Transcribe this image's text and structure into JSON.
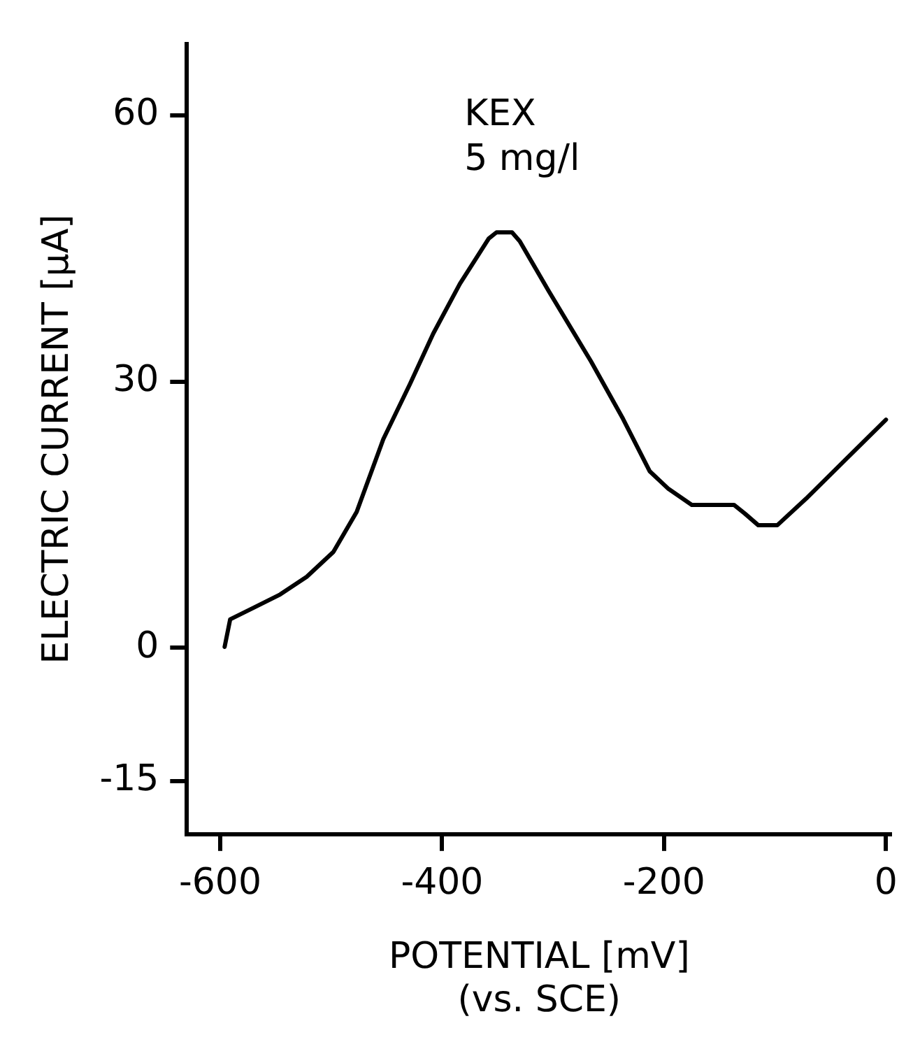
{
  "chart_data": {
    "type": "line",
    "xlabel": "POTENTIAL [mV]\n(vs. SCE)",
    "ylabel": "ELECTRIC CURRENT [μA]",
    "annotations": [
      "KEX\n5 mg/l"
    ],
    "x": [
      -596,
      -591,
      -570,
      -546,
      -522,
      -498,
      -477,
      -453,
      -429,
      -408,
      -384,
      -358,
      -351,
      -337,
      -330,
      -304,
      -266,
      -237,
      -213,
      -196,
      -175,
      -137,
      -127,
      -115,
      -98,
      -72,
      -34,
      0
    ],
    "series": [
      {
        "color": "#000000",
        "values": [
          0.1,
          3.2,
          4.5,
          6.0,
          8.0,
          10.8,
          15.3,
          23.5,
          29.7,
          35.4,
          41.0,
          46.1,
          46.8,
          46.8,
          45.8,
          40.2,
          32.3,
          25.8,
          19.9,
          17.9,
          16.1,
          16.1,
          15.1,
          13.8,
          13.8,
          16.8,
          21.5,
          25.7
        ]
      }
    ],
    "xlim": [
      -630,
      5
    ],
    "xticks": [
      -600,
      -400,
      -200,
      0
    ],
    "ylim": [
      -21,
      68
    ],
    "yticks": [
      60,
      30,
      0,
      -15
    ],
    "grid": false,
    "legend": false,
    "marker": "none",
    "line_style": "solid"
  }
}
